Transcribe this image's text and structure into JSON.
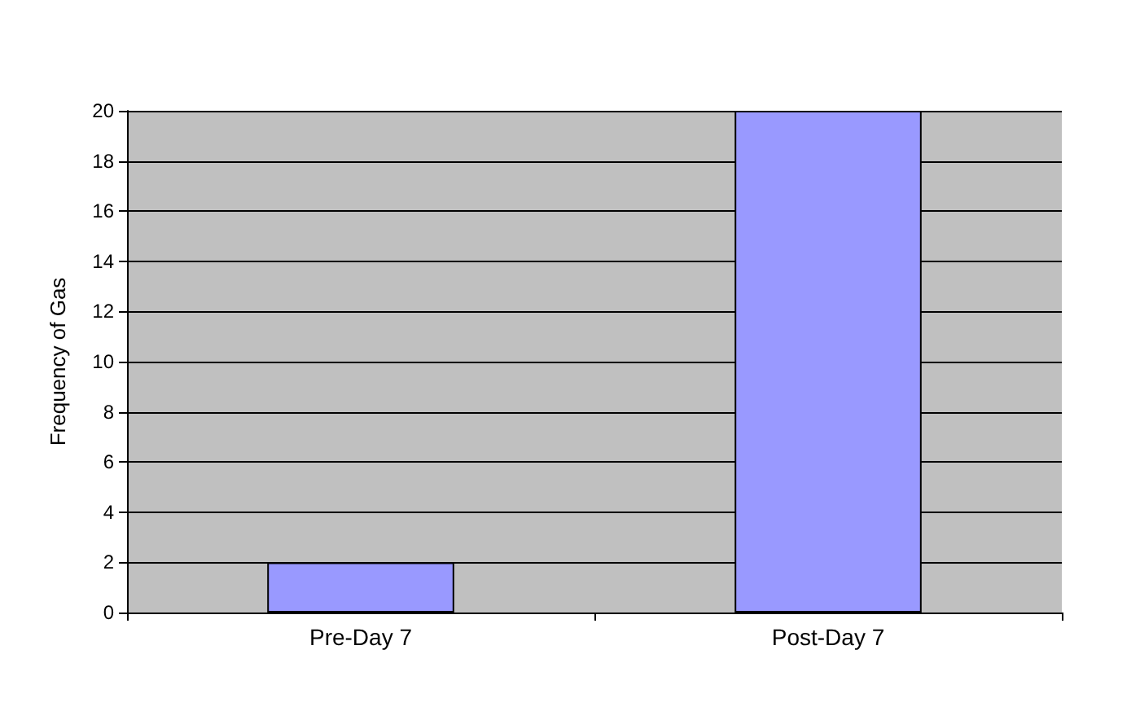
{
  "chart_data": {
    "type": "bar",
    "ylabel": "Frequency of Gas",
    "categories": [
      "Pre-Day 7",
      "Post-Day 7"
    ],
    "values": [
      2,
      20
    ],
    "color": "#9999ff",
    "ylim": [
      0,
      20
    ],
    "yticks": [
      0,
      2,
      4,
      6,
      8,
      10,
      12,
      14,
      16,
      18,
      20
    ],
    "grid": "y"
  }
}
